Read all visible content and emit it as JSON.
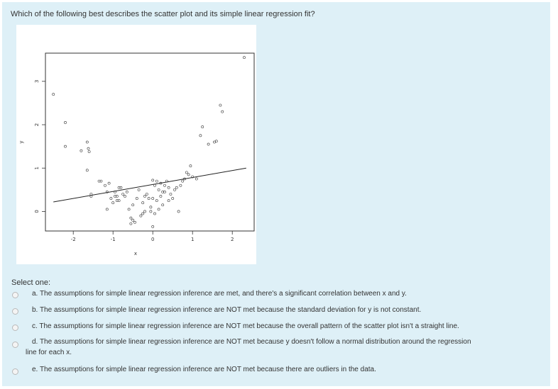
{
  "question": {
    "text": "Which of the following best describes the scatter plot and its simple linear regression fit?"
  },
  "select_label": "Select one:",
  "options": [
    {
      "label": "a. The assumptions for simple linear regression inference are met, and there's a significant correlation between x and y."
    },
    {
      "label": "b. The assumptions for simple linear regression inference are NOT met because the standard deviation for y is not constant."
    },
    {
      "label": "c. The assumptions for simple linear regression inference are NOT met because the overall pattern of the scatter plot isn't a straight line."
    },
    {
      "label": "d. The assumptions for simple linear regression inference are NOT met because y doesn't follow a normal distribution around the regression",
      "label_cont": "line for each x."
    },
    {
      "label": "e. The assumptions for simple linear regression inference are NOT met because there are outliers in the data."
    }
  ],
  "colors": {
    "panel_bg": "#def0f7",
    "text": "#333333",
    "points": "#333333"
  },
  "chart_data": {
    "type": "scatter",
    "xlabel": "x",
    "ylabel": "y",
    "xlim": [
      -2.7,
      2.55
    ],
    "ylim": [
      -0.45,
      3.65
    ],
    "xticks": [
      -2,
      -1,
      0,
      1,
      2
    ],
    "yticks": [
      0,
      1,
      2,
      3
    ],
    "grid": false,
    "regression_line": {
      "x": [
        -2.5,
        2.35
      ],
      "y": [
        0.22,
        1.0
      ]
    },
    "points": [
      [
        -2.5,
        2.7
      ],
      [
        -2.2,
        2.05
      ],
      [
        -2.2,
        1.5
      ],
      [
        -1.8,
        1.4
      ],
      [
        -1.65,
        1.6
      ],
      [
        -1.62,
        1.45
      ],
      [
        -1.6,
        1.38
      ],
      [
        -1.65,
        0.95
      ],
      [
        -1.55,
        0.35
      ],
      [
        -1.35,
        0.7
      ],
      [
        -1.3,
        0.7
      ],
      [
        -1.2,
        0.6
      ],
      [
        -1.1,
        0.65
      ],
      [
        -1.15,
        0.45
      ],
      [
        -1.05,
        0.3
      ],
      [
        -0.95,
        0.45
      ],
      [
        -0.9,
        0.25
      ],
      [
        -1.0,
        0.2
      ],
      [
        -0.95,
        0.35
      ],
      [
        -0.85,
        0.25
      ],
      [
        -0.8,
        0.55
      ],
      [
        -0.75,
        0.4
      ],
      [
        -0.7,
        0.35
      ],
      [
        -0.65,
        0.45
      ],
      [
        -0.6,
        0.05
      ],
      [
        -0.55,
        -0.15
      ],
      [
        -0.5,
        -0.2
      ],
      [
        -0.55,
        -0.28
      ],
      [
        -0.45,
        -0.25
      ],
      [
        -0.4,
        0.3
      ],
      [
        -0.35,
        0.5
      ],
      [
        -0.3,
        -0.1
      ],
      [
        -0.25,
        0.2
      ],
      [
        -0.2,
        0.35
      ],
      [
        -0.15,
        0.4
      ],
      [
        -0.1,
        0.3
      ],
      [
        -0.2,
        0.0
      ],
      [
        -0.05,
        0.1
      ],
      [
        -0.05,
        0.0
      ],
      [
        0.0,
        0.3
      ],
      [
        0.05,
        -0.05
      ],
      [
        0.1,
        0.25
      ],
      [
        0.05,
        0.6
      ],
      [
        0.1,
        0.7
      ],
      [
        0.15,
        0.5
      ],
      [
        0.2,
        0.35
      ],
      [
        0.2,
        0.65
      ],
      [
        0.25,
        0.15
      ],
      [
        0.3,
        0.45
      ],
      [
        0.3,
        0.6
      ],
      [
        0.35,
        0.7
      ],
      [
        0.4,
        0.55
      ],
      [
        0.4,
        0.25
      ],
      [
        0.45,
        0.4
      ],
      [
        0.5,
        0.3
      ],
      [
        0.55,
        0.5
      ],
      [
        0.6,
        0.55
      ],
      [
        0.65,
        0.0
      ],
      [
        0.7,
        0.6
      ],
      [
        0.75,
        0.7
      ],
      [
        0.8,
        0.75
      ],
      [
        0.85,
        0.9
      ],
      [
        0.9,
        0.85
      ],
      [
        0.95,
        1.05
      ],
      [
        1.0,
        0.8
      ],
      [
        1.1,
        0.75
      ],
      [
        -1.55,
        0.4
      ],
      [
        -1.15,
        0.05
      ],
      [
        -0.9,
        0.35
      ],
      [
        0.15,
        0.05
      ],
      [
        0.0,
        -0.35
      ],
      [
        -0.25,
        -0.05
      ],
      [
        -0.85,
        0.55
      ],
      [
        0.25,
        0.45
      ],
      [
        -0.5,
        0.15
      ],
      [
        1.2,
        1.75
      ],
      [
        1.25,
        1.95
      ],
      [
        1.4,
        1.55
      ],
      [
        1.55,
        1.6
      ],
      [
        1.6,
        1.62
      ],
      [
        1.7,
        2.45
      ],
      [
        1.75,
        2.3
      ],
      [
        2.3,
        3.55
      ],
      [
        0.0,
        0.72
      ]
    ]
  }
}
